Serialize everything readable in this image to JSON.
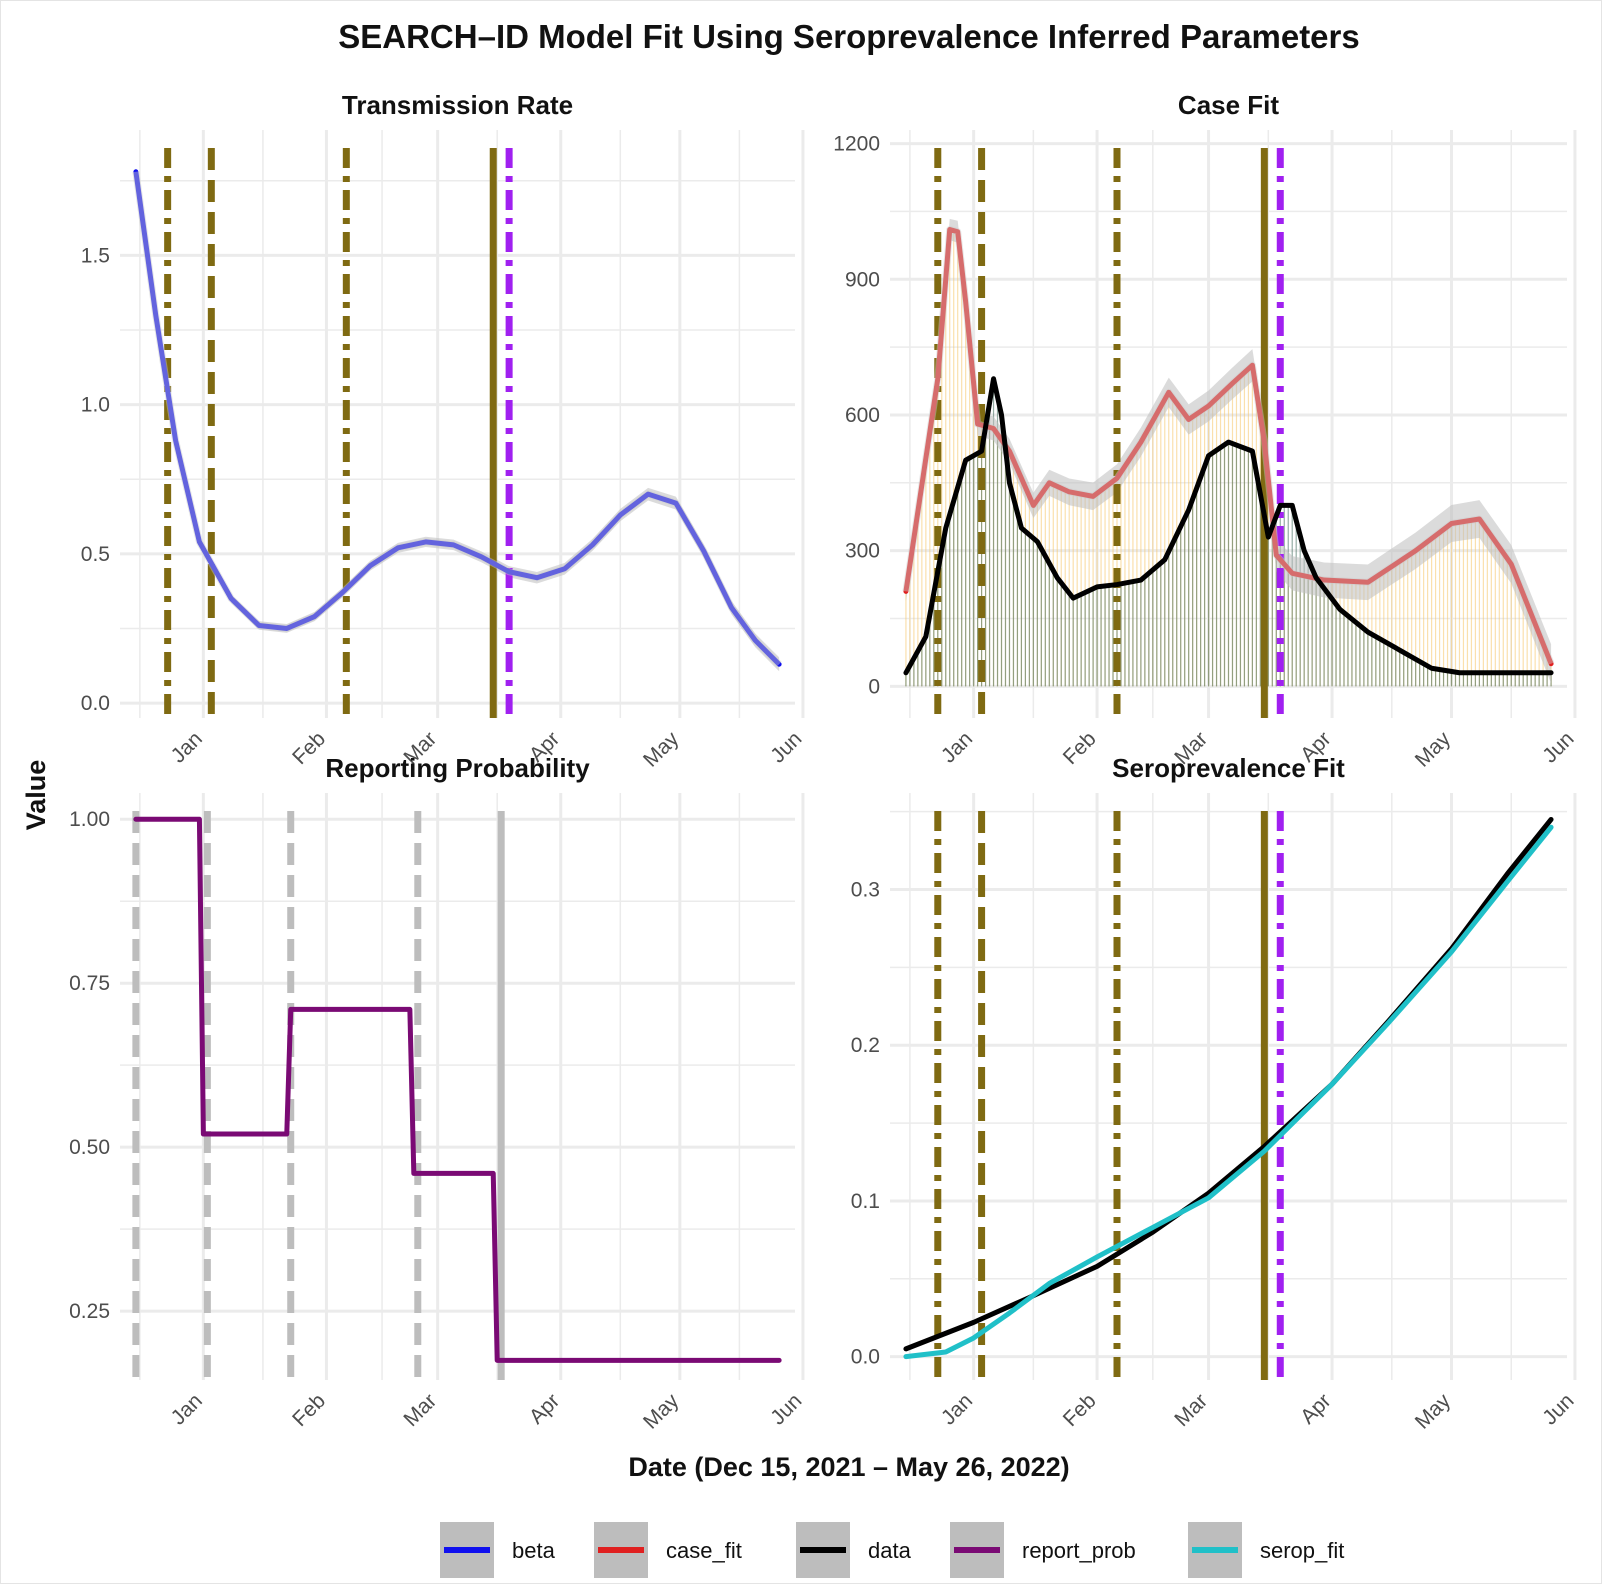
{
  "figure": {
    "title": "SEARCH–ID Model Fit Using Seroprevalence Inferred Parameters",
    "xlabel": "Date (Dec 15, 2021 – May 26, 2022)",
    "ylabel": "Value"
  },
  "legend": [
    {
      "name": "beta",
      "color": "#1010ee"
    },
    {
      "name": "case_fit",
      "color": "#e02020"
    },
    {
      "name": "data",
      "color": "#000000"
    },
    {
      "name": "report_prob",
      "color": "#7a0a74"
    },
    {
      "name": "serop_fit",
      "color": "#20c0c8"
    }
  ],
  "colors": {
    "grid": "#ebebeb",
    "ribbon": "#bdbdbd",
    "vline_olive": "#7f6a12",
    "vline_purple": "#a020f0",
    "vline_gray": "#bdbdbd",
    "bar_data": "#3e6a5a",
    "bar_fit": "#f5c76a"
  },
  "chart_data": [
    {
      "id": "tr",
      "type": "line",
      "title": "Transmission Rate",
      "x_ticks": [
        "Jan",
        "Feb",
        "Mar",
        "Apr",
        "May",
        "Jun"
      ],
      "x_tick_dates": [
        "2022-01-01",
        "2022-02-01",
        "2022-03-01",
        "2022-04-01",
        "2022-05-01",
        "2022-06-01"
      ],
      "xlim": [
        "2021-12-11",
        "2022-05-30"
      ],
      "y_ticks": [
        0.0,
        0.5,
        1.0,
        1.5
      ],
      "y_tick_labels": [
        "0.0",
        "0.5",
        "1.0",
        "1.5"
      ],
      "ylim": [
        -0.05,
        1.92
      ],
      "series": [
        {
          "name": "beta",
          "color": "#1010ee",
          "ribbon": true,
          "band": 0.012,
          "x": [
            "2021-12-15",
            "2021-12-20",
            "2021-12-25",
            "2021-12-31",
            "2022-01-08",
            "2022-01-15",
            "2022-01-22",
            "2022-01-29",
            "2022-02-05",
            "2022-02-12",
            "2022-02-19",
            "2022-02-26",
            "2022-03-05",
            "2022-03-12",
            "2022-03-19",
            "2022-03-26",
            "2022-04-02",
            "2022-04-09",
            "2022-04-16",
            "2022-04-23",
            "2022-04-30",
            "2022-05-07",
            "2022-05-14",
            "2022-05-20",
            "2022-05-26"
          ],
          "y": [
            1.78,
            1.3,
            0.88,
            0.54,
            0.35,
            0.26,
            0.25,
            0.29,
            0.37,
            0.46,
            0.52,
            0.54,
            0.53,
            0.49,
            0.44,
            0.42,
            0.45,
            0.53,
            0.63,
            0.7,
            0.67,
            0.51,
            0.32,
            0.21,
            0.13
          ]
        }
      ],
      "vlines": [
        {
          "x": "2021-12-23",
          "style": "dotdash",
          "color": "#7f6a12"
        },
        {
          "x": "2022-01-03",
          "style": "dash",
          "color": "#7f6a12"
        },
        {
          "x": "2022-02-06",
          "style": "dotdash",
          "color": "#7f6a12"
        },
        {
          "x": "2022-03-15",
          "style": "solid",
          "color": "#7f6a12"
        },
        {
          "x": "2022-03-19",
          "style": "dotdash",
          "color": "#a020f0"
        }
      ]
    },
    {
      "id": "cf",
      "type": "line",
      "title": "Case Fit",
      "x_ticks": [
        "Jan",
        "Feb",
        "Mar",
        "Apr",
        "May",
        "Jun"
      ],
      "x_tick_dates": [
        "2022-01-01",
        "2022-02-01",
        "2022-03-01",
        "2022-04-01",
        "2022-05-01",
        "2022-06-01"
      ],
      "xlim": [
        "2021-12-11",
        "2022-05-30"
      ],
      "y_ticks": [
        0,
        300,
        600,
        900,
        1200
      ],
      "y_tick_labels": [
        "0",
        "300",
        "600",
        "900",
        "1200"
      ],
      "ylim": [
        -70,
        1230
      ],
      "series": [
        {
          "name": "case_fit",
          "color": "#e02020",
          "ribbon": true,
          "band": 22,
          "bars": true,
          "x": [
            "2021-12-15",
            "2021-12-23",
            "2021-12-26",
            "2021-12-28",
            "2021-12-30",
            "2022-01-02",
            "2022-01-06",
            "2022-01-10",
            "2022-01-16",
            "2022-01-20",
            "2022-01-25",
            "2022-01-31",
            "2022-02-06",
            "2022-02-12",
            "2022-02-19",
            "2022-02-24",
            "2022-03-01",
            "2022-03-07",
            "2022-03-12",
            "2022-03-15",
            "2022-03-18",
            "2022-03-22",
            "2022-03-30",
            "2022-04-10",
            "2022-04-22",
            "2022-05-01",
            "2022-05-08",
            "2022-05-16",
            "2022-05-26"
          ],
          "y": [
            210,
            680,
            1010,
            1005,
            850,
            580,
            570,
            520,
            400,
            450,
            430,
            420,
            460,
            540,
            650,
            590,
            620,
            670,
            710,
            540,
            290,
            250,
            235,
            230,
            300,
            360,
            370,
            270,
            50
          ]
        },
        {
          "name": "data",
          "color": "#000000",
          "ribbon": false,
          "bars": true,
          "x": [
            "2021-12-15",
            "2021-12-20",
            "2021-12-25",
            "2021-12-30",
            "2022-01-03",
            "2022-01-06",
            "2022-01-08",
            "2022-01-10",
            "2022-01-13",
            "2022-01-17",
            "2022-01-22",
            "2022-01-26",
            "2022-02-01",
            "2022-02-06",
            "2022-02-12",
            "2022-02-18",
            "2022-02-24",
            "2022-03-01",
            "2022-03-06",
            "2022-03-12",
            "2022-03-16",
            "2022-03-19",
            "2022-03-22",
            "2022-03-25",
            "2022-03-28",
            "2022-04-03",
            "2022-04-10",
            "2022-04-18",
            "2022-04-26",
            "2022-05-03",
            "2022-05-12",
            "2022-05-26"
          ],
          "y": [
            30,
            110,
            350,
            500,
            520,
            680,
            600,
            450,
            350,
            320,
            240,
            195,
            220,
            225,
            235,
            280,
            390,
            510,
            540,
            520,
            330,
            400,
            400,
            300,
            240,
            170,
            120,
            80,
            40,
            30,
            30,
            30
          ]
        }
      ],
      "vlines": [
        {
          "x": "2021-12-23",
          "style": "dotdash",
          "color": "#7f6a12"
        },
        {
          "x": "2022-01-03",
          "style": "dash",
          "color": "#7f6a12"
        },
        {
          "x": "2022-02-06",
          "style": "dotdash",
          "color": "#7f6a12"
        },
        {
          "x": "2022-03-15",
          "style": "solid",
          "color": "#7f6a12"
        },
        {
          "x": "2022-03-19",
          "style": "dotdash",
          "color": "#a020f0"
        }
      ]
    },
    {
      "id": "rp",
      "type": "line",
      "title": "Reporting Probability",
      "x_ticks": [
        "Jan",
        "Feb",
        "Mar",
        "Apr",
        "May",
        "Jun"
      ],
      "x_tick_dates": [
        "2022-01-01",
        "2022-02-01",
        "2022-03-01",
        "2022-04-01",
        "2022-05-01",
        "2022-06-01"
      ],
      "xlim": [
        "2021-12-11",
        "2022-05-30"
      ],
      "y_ticks": [
        0.25,
        0.5,
        0.75,
        1.0
      ],
      "y_tick_labels": [
        "0.25",
        "0.50",
        "0.75",
        "1.00"
      ],
      "ylim": [
        0.145,
        1.04
      ],
      "series": [
        {
          "name": "report_prob",
          "color": "#7a0a74",
          "ribbon": false,
          "x": [
            "2021-12-15",
            "2021-12-31",
            "2022-01-01",
            "2022-01-22",
            "2022-01-23",
            "2022-02-22",
            "2022-02-23",
            "2022-03-15",
            "2022-03-16",
            "2022-05-26"
          ],
          "y": [
            1.0,
            1.0,
            0.52,
            0.52,
            0.71,
            0.71,
            0.46,
            0.46,
            0.175,
            0.175
          ]
        }
      ],
      "vlines": [
        {
          "x": "2021-12-15",
          "style": "dash",
          "color": "#bdbdbd"
        },
        {
          "x": "2022-01-02",
          "style": "dash",
          "color": "#bdbdbd"
        },
        {
          "x": "2022-01-23",
          "style": "dash",
          "color": "#bdbdbd"
        },
        {
          "x": "2022-02-24",
          "style": "dash",
          "color": "#bdbdbd"
        },
        {
          "x": "2022-03-17",
          "style": "solid",
          "color": "#bdbdbd"
        }
      ]
    },
    {
      "id": "sf",
      "type": "line",
      "title": "Seroprevalence Fit",
      "x_ticks": [
        "Jan",
        "Feb",
        "Mar",
        "Apr",
        "May",
        "Jun"
      ],
      "x_tick_dates": [
        "2022-01-01",
        "2022-02-01",
        "2022-03-01",
        "2022-04-01",
        "2022-05-01",
        "2022-06-01"
      ],
      "xlim": [
        "2021-12-11",
        "2022-05-30"
      ],
      "y_ticks": [
        0.0,
        0.1,
        0.2,
        0.3
      ],
      "y_tick_labels": [
        "0.0",
        "0.1",
        "0.2",
        "0.3"
      ],
      "ylim": [
        -0.015,
        0.362
      ],
      "series": [
        {
          "name": "data",
          "color": "#000000",
          "ribbon": false,
          "x": [
            "2021-12-15",
            "2022-01-01",
            "2022-01-15",
            "2022-02-01",
            "2022-02-15",
            "2022-03-01",
            "2022-03-15",
            "2022-04-01",
            "2022-04-15",
            "2022-05-01",
            "2022-05-15",
            "2022-05-26"
          ],
          "y": [
            0.005,
            0.022,
            0.038,
            0.058,
            0.08,
            0.105,
            0.135,
            0.175,
            0.215,
            0.262,
            0.31,
            0.345
          ]
        },
        {
          "name": "serop_fit",
          "color": "#20c0c8",
          "ribbon": false,
          "x": [
            "2021-12-15",
            "2021-12-25",
            "2022-01-01",
            "2022-01-10",
            "2022-01-20",
            "2022-02-01",
            "2022-02-15",
            "2022-03-01",
            "2022-03-15",
            "2022-04-01",
            "2022-04-15",
            "2022-05-01",
            "2022-05-15",
            "2022-05-26"
          ],
          "y": [
            0.0,
            0.003,
            0.012,
            0.028,
            0.047,
            0.064,
            0.083,
            0.102,
            0.132,
            0.175,
            0.214,
            0.26,
            0.305,
            0.34
          ]
        }
      ],
      "vlines": [
        {
          "x": "2021-12-23",
          "style": "dotdash",
          "color": "#7f6a12"
        },
        {
          "x": "2022-01-03",
          "style": "dash",
          "color": "#7f6a12"
        },
        {
          "x": "2022-02-06",
          "style": "dotdash",
          "color": "#7f6a12"
        },
        {
          "x": "2022-03-15",
          "style": "solid",
          "color": "#7f6a12"
        },
        {
          "x": "2022-03-19",
          "style": "dotdash",
          "color": "#a020f0"
        }
      ]
    }
  ]
}
